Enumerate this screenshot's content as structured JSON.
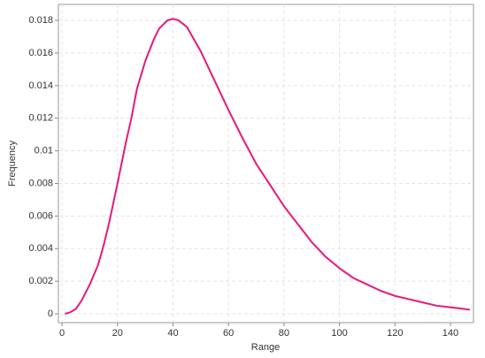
{
  "chart_data": {
    "type": "line",
    "x_label": "Range",
    "y_label": "Frequency",
    "x": [
      1,
      3,
      5,
      7,
      10,
      13,
      15,
      17,
      20,
      23,
      25,
      27,
      30,
      33,
      35,
      38,
      40,
      42,
      45,
      48,
      50,
      55,
      60,
      65,
      70,
      75,
      80,
      85,
      90,
      95,
      100,
      105,
      110,
      115,
      120,
      125,
      130,
      135,
      140,
      145,
      147
    ],
    "series": [
      {
        "color": "#e6197b",
        "values": [
          0,
          0.0001,
          0.0003,
          0.0008,
          0.0018,
          0.003,
          0.0042,
          0.0056,
          0.008,
          0.0105,
          0.012,
          0.0138,
          0.0155,
          0.0168,
          0.0175,
          0.018,
          0.0181,
          0.018,
          0.0176,
          0.0167,
          0.0161,
          0.0143,
          0.0125,
          0.0108,
          0.0092,
          0.0079,
          0.0066,
          0.0055,
          0.0044,
          0.0035,
          0.0028,
          0.0022,
          0.0018,
          0.0014,
          0.0011,
          0.0009,
          0.0007,
          0.0005,
          0.0004,
          0.0003,
          0.00025
        ]
      }
    ],
    "xlim": [
      -1.3,
      148.3
    ],
    "ylim": [
      -0.00054,
      0.01898
    ],
    "xticks": [
      0,
      20,
      40,
      60,
      80,
      100,
      120,
      140
    ],
    "yticks": [
      0,
      0.002,
      0.004,
      0.006,
      0.008,
      0.01,
      0.012,
      0.014,
      0.016,
      0.018
    ],
    "grid": true
  }
}
